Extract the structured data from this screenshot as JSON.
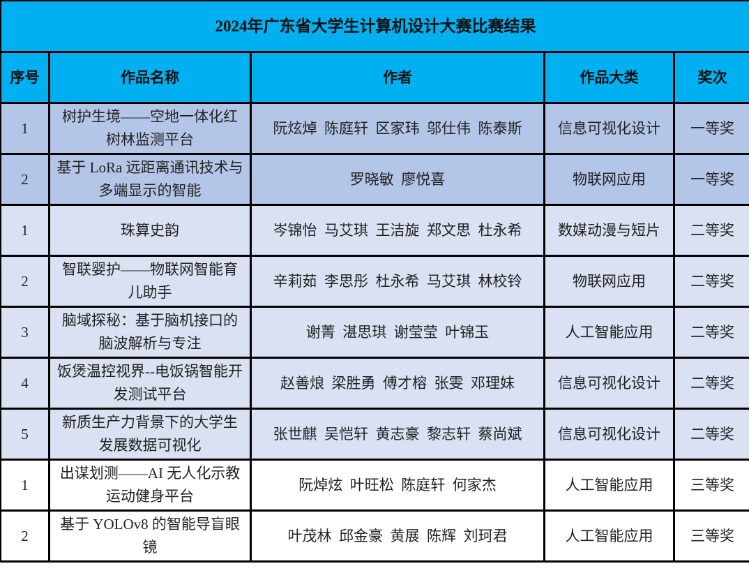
{
  "title": "2024年广东省大学生计算机设计大赛比赛结果",
  "headers": [
    "序号",
    "作品名称",
    "作者",
    "作品大类",
    "奖次"
  ],
  "colors": {
    "header_bg": "#00b0f0",
    "first_prize_bg": "#b4c6e7",
    "second_prize_bg": "#d9e1f2",
    "third_prize_bg": "#ffffff"
  },
  "rows": [
    {
      "no": "1",
      "name": "树护生境——空地一体化红树林监测平台",
      "authors": "阮炫焯  陈庭轩  区家玮  邬仕伟  陈泰斯",
      "category": "信息可视化设计",
      "award": "一等奖",
      "tier": "c1"
    },
    {
      "no": "2",
      "name": "基于 LoRa 远距离通讯技术与多端显示的智能",
      "authors": "罗晓敏  廖悦喜",
      "category": "物联网应用",
      "award": "一等奖",
      "tier": "c1"
    },
    {
      "no": "1",
      "name": "珠算史韵",
      "authors": "岑锦怡  马艾琪  王洁旋  郑文思  杜永希",
      "category": "数媒动漫与短片",
      "award": "二等奖",
      "tier": "c2"
    },
    {
      "no": "2",
      "name": "智联婴护——物联网智能育儿助手",
      "authors": "辛莉茹  李思彤  杜永希  马艾琪  林校铃",
      "category": "物联网应用",
      "award": "二等奖",
      "tier": "c2"
    },
    {
      "no": "3",
      "name": "脑域探秘：基于脑机接口的脑波解析与专注",
      "authors": "谢菁  湛思琪  谢莹莹  叶锦玉",
      "category": "人工智能应用",
      "award": "二等奖",
      "tier": "c2"
    },
    {
      "no": "4",
      "name": "饭煲温控视界--电饭锅智能开发测试平台",
      "authors": "赵善烺  梁胜勇  傅才榕  张雯  邓理妹",
      "category": "信息可视化设计",
      "award": "二等奖",
      "tier": "c2"
    },
    {
      "no": "5",
      "name": "新质生产力背景下的大学生发展数据可视化",
      "authors": "张世麒  吴恺轩  黄志豪  黎志轩  蔡尚斌",
      "category": "信息可视化设计",
      "award": "二等奖",
      "tier": "c2"
    },
    {
      "no": "1",
      "name": "出谋划测——AI 无人化示教运动健身平台",
      "authors": "阮焯炫  叶旺松  陈庭轩  何家杰",
      "category": "人工智能应用",
      "award": "三等奖",
      "tier": "c3"
    },
    {
      "no": "2",
      "name": "基于 YOLOv8 的智能导盲眼镜",
      "authors": "叶茂林  邱金豪  黄展  陈辉  刘珂君",
      "category": "人工智能应用",
      "award": "三等奖",
      "tier": "c3"
    }
  ]
}
